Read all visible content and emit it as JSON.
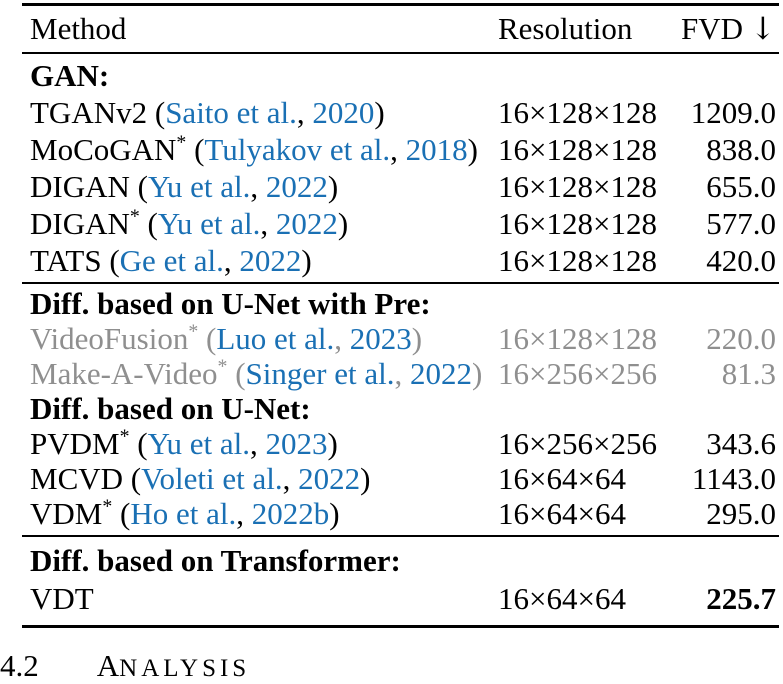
{
  "colors": {
    "citation_blue": "#1a70b4",
    "muted_gray": "#8f8f8f",
    "text_black": "#000000"
  },
  "table": {
    "header": {
      "method": "Method",
      "resolution": "Resolution",
      "fvd": "FVD",
      "fvd_arrow": "↓"
    },
    "groups": [
      {
        "sections": [
          {
            "label": "GAN:",
            "rows": [
              {
                "method": "TGANv2",
                "sup": "",
                "authors": "Saito et al.",
                "year": "2020",
                "resolution": "16×128×128",
                "fvd": "1209.0",
                "muted": false,
                "bold_fvd": false
              },
              {
                "method": "MoCoGAN",
                "sup": "*",
                "authors": "Tulyakov et al.",
                "year": "2018",
                "resolution": "16×128×128",
                "fvd": "838.0",
                "muted": false,
                "bold_fvd": false
              },
              {
                "method": "DIGAN",
                "sup": "",
                "authors": "Yu et al.",
                "year": "2022",
                "resolution": "16×128×128",
                "fvd": "655.0",
                "muted": false,
                "bold_fvd": false
              },
              {
                "method": "DIGAN",
                "sup": "*",
                "authors": "Yu et al.",
                "year": "2022",
                "resolution": "16×128×128",
                "fvd": "577.0",
                "muted": false,
                "bold_fvd": false
              },
              {
                "method": "TATS",
                "sup": "",
                "authors": "Ge et al.",
                "year": "2022",
                "resolution": "16×128×128",
                "fvd": "420.0",
                "muted": false,
                "bold_fvd": false
              }
            ]
          }
        ]
      },
      {
        "sections": [
          {
            "label": "Diff. based on U-Net with Pre:",
            "rows": [
              {
                "method": "VideoFusion",
                "sup": "*",
                "authors": "Luo et al.",
                "year": "2023",
                "resolution": "16×128×128",
                "fvd": "220.0",
                "muted": true,
                "bold_fvd": false
              },
              {
                "method": "Make-A-Video",
                "sup": "*",
                "authors": "Singer et al.",
                "year": "2022",
                "resolution": "16×256×256",
                "fvd": "81.3",
                "muted": true,
                "bold_fvd": false
              }
            ]
          },
          {
            "label": "Diff. based on U-Net:",
            "rows": [
              {
                "method": "PVDM",
                "sup": "*",
                "authors": "Yu et al.",
                "year": "2023",
                "resolution": "16×256×256",
                "fvd": "343.6",
                "muted": false,
                "bold_fvd": false
              },
              {
                "method": "MCVD",
                "sup": "",
                "authors": "Voleti et al.",
                "year": "2022",
                "resolution": "16×64×64",
                "fvd": "1143.0",
                "muted": false,
                "bold_fvd": false
              },
              {
                "method": "VDM",
                "sup": "*",
                "authors": "Ho et al.",
                "year": "2022b",
                "resolution": "16×64×64",
                "fvd": "295.0",
                "muted": false,
                "bold_fvd": false
              }
            ]
          }
        ]
      },
      {
        "sections": [
          {
            "label": "Diff. based on Transformer:",
            "rows": [
              {
                "method": "VDT",
                "sup": "",
                "authors": null,
                "year": null,
                "resolution": "16×64×64",
                "fvd": "225.7",
                "muted": false,
                "bold_fvd": true
              }
            ]
          }
        ]
      }
    ]
  },
  "section_heading": {
    "number": "4.2",
    "title_cap": "A",
    "title_rest": "NALYSIS"
  }
}
